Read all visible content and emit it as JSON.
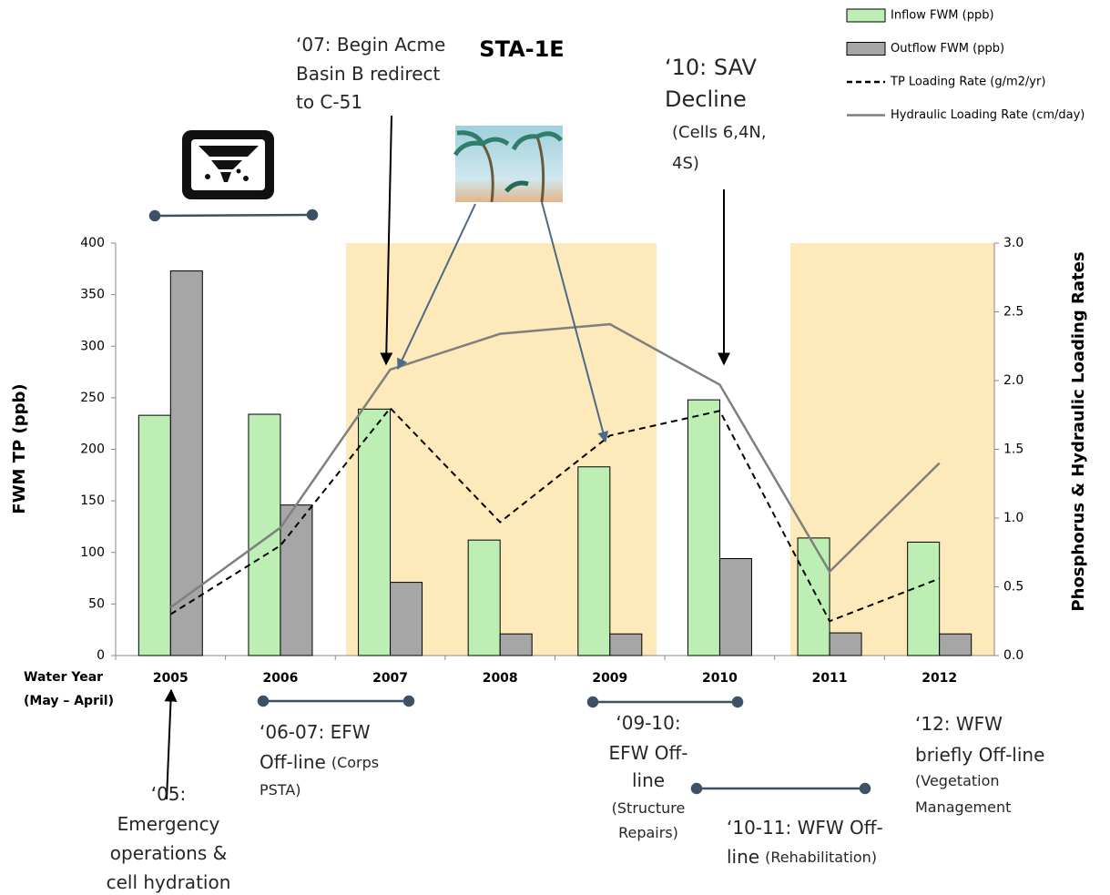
{
  "chart_data": {
    "type": "bar_line",
    "title": "STA-1E",
    "ylabel": "FWM TP (ppb)",
    "y2label": "Phosphorus & Hydraulic Loading Rates",
    "xlabel_lines": [
      "Water Year",
      "(May – April)"
    ],
    "categories": [
      "2005",
      "2006",
      "2007",
      "2008",
      "2009",
      "2010",
      "2011",
      "2012"
    ],
    "series": [
      {
        "name": "Inflow FWM (ppb)",
        "type": "bar",
        "color": "#bdeeb4",
        "values": [
          233,
          234,
          239,
          112,
          183,
          248,
          114,
          110
        ]
      },
      {
        "name": "Outflow FWM (ppb)",
        "type": "bar",
        "color": "#a6a6a6",
        "values": [
          373,
          146,
          71,
          21,
          21,
          94,
          22,
          21
        ]
      },
      {
        "name": "TP Loading Rate (g/m2/yr)",
        "type": "line",
        "dashed": true,
        "axis": "y2",
        "color": "#000000",
        "values": [
          0.3,
          0.8,
          1.8,
          0.97,
          1.6,
          1.78,
          0.25,
          0.56
        ]
      },
      {
        "name": "Hydraulic Loading Rate (cm/day)",
        "type": "line",
        "dashed": false,
        "axis": "y2",
        "color": "#7f7f7f",
        "values": [
          0.35,
          0.93,
          2.08,
          2.34,
          2.41,
          1.97,
          0.61,
          1.4
        ]
      }
    ],
    "ylim": [
      0,
      400
    ],
    "yticks": [
      0,
      50,
      100,
      150,
      200,
      250,
      300,
      350,
      400
    ],
    "y2lim": [
      0,
      3
    ],
    "y2ticks": [
      {
        "value": 0,
        "label": "0.0"
      },
      0.5,
      {
        "value": 1,
        "label": "1.0"
      },
      1.5,
      {
        "value": 2,
        "label": "2.0"
      },
      2.5,
      {
        "value": 3,
        "label": "3.0"
      }
    ],
    "legend": "top-right",
    "annotations": [
      {
        "lines": [
          [
            "‘07: Begin Acme"
          ],
          [
            "Basin B redirect"
          ],
          [
            "to C-51"
          ]
        ]
      },
      {
        "lines": [
          [
            "‘10: SAV"
          ],
          [
            "Decline"
          ],
          [
            "(Cells 6,4N,"
          ],
          [
            "4S)"
          ]
        ]
      },
      {
        "lines": [
          [
            "‘06-07: EFW"
          ],
          [
            "Off-line",
            "(Corps"
          ],
          [
            "PSTA)"
          ]
        ]
      },
      {
        "lines": [
          [
            "‘09-10:"
          ],
          [
            "EFW Off-"
          ],
          [
            "line"
          ],
          [
            "(Structure"
          ],
          [
            "Repairs)"
          ]
        ]
      },
      {
        "lines": [
          [
            "‘10-11: WFW Off-"
          ],
          [
            "line",
            "(Rehabilitation)"
          ]
        ]
      },
      {
        "lines": [
          [
            "‘12: WFW"
          ],
          [
            "briefly Off-line"
          ],
          [
            "(Vegetation"
          ],
          [
            "Management"
          ]
        ]
      },
      {
        "lines": [
          [
            "‘05:"
          ],
          [
            "Emergency"
          ],
          [
            "operations &"
          ],
          [
            "cell hydration"
          ]
        ]
      }
    ]
  }
}
